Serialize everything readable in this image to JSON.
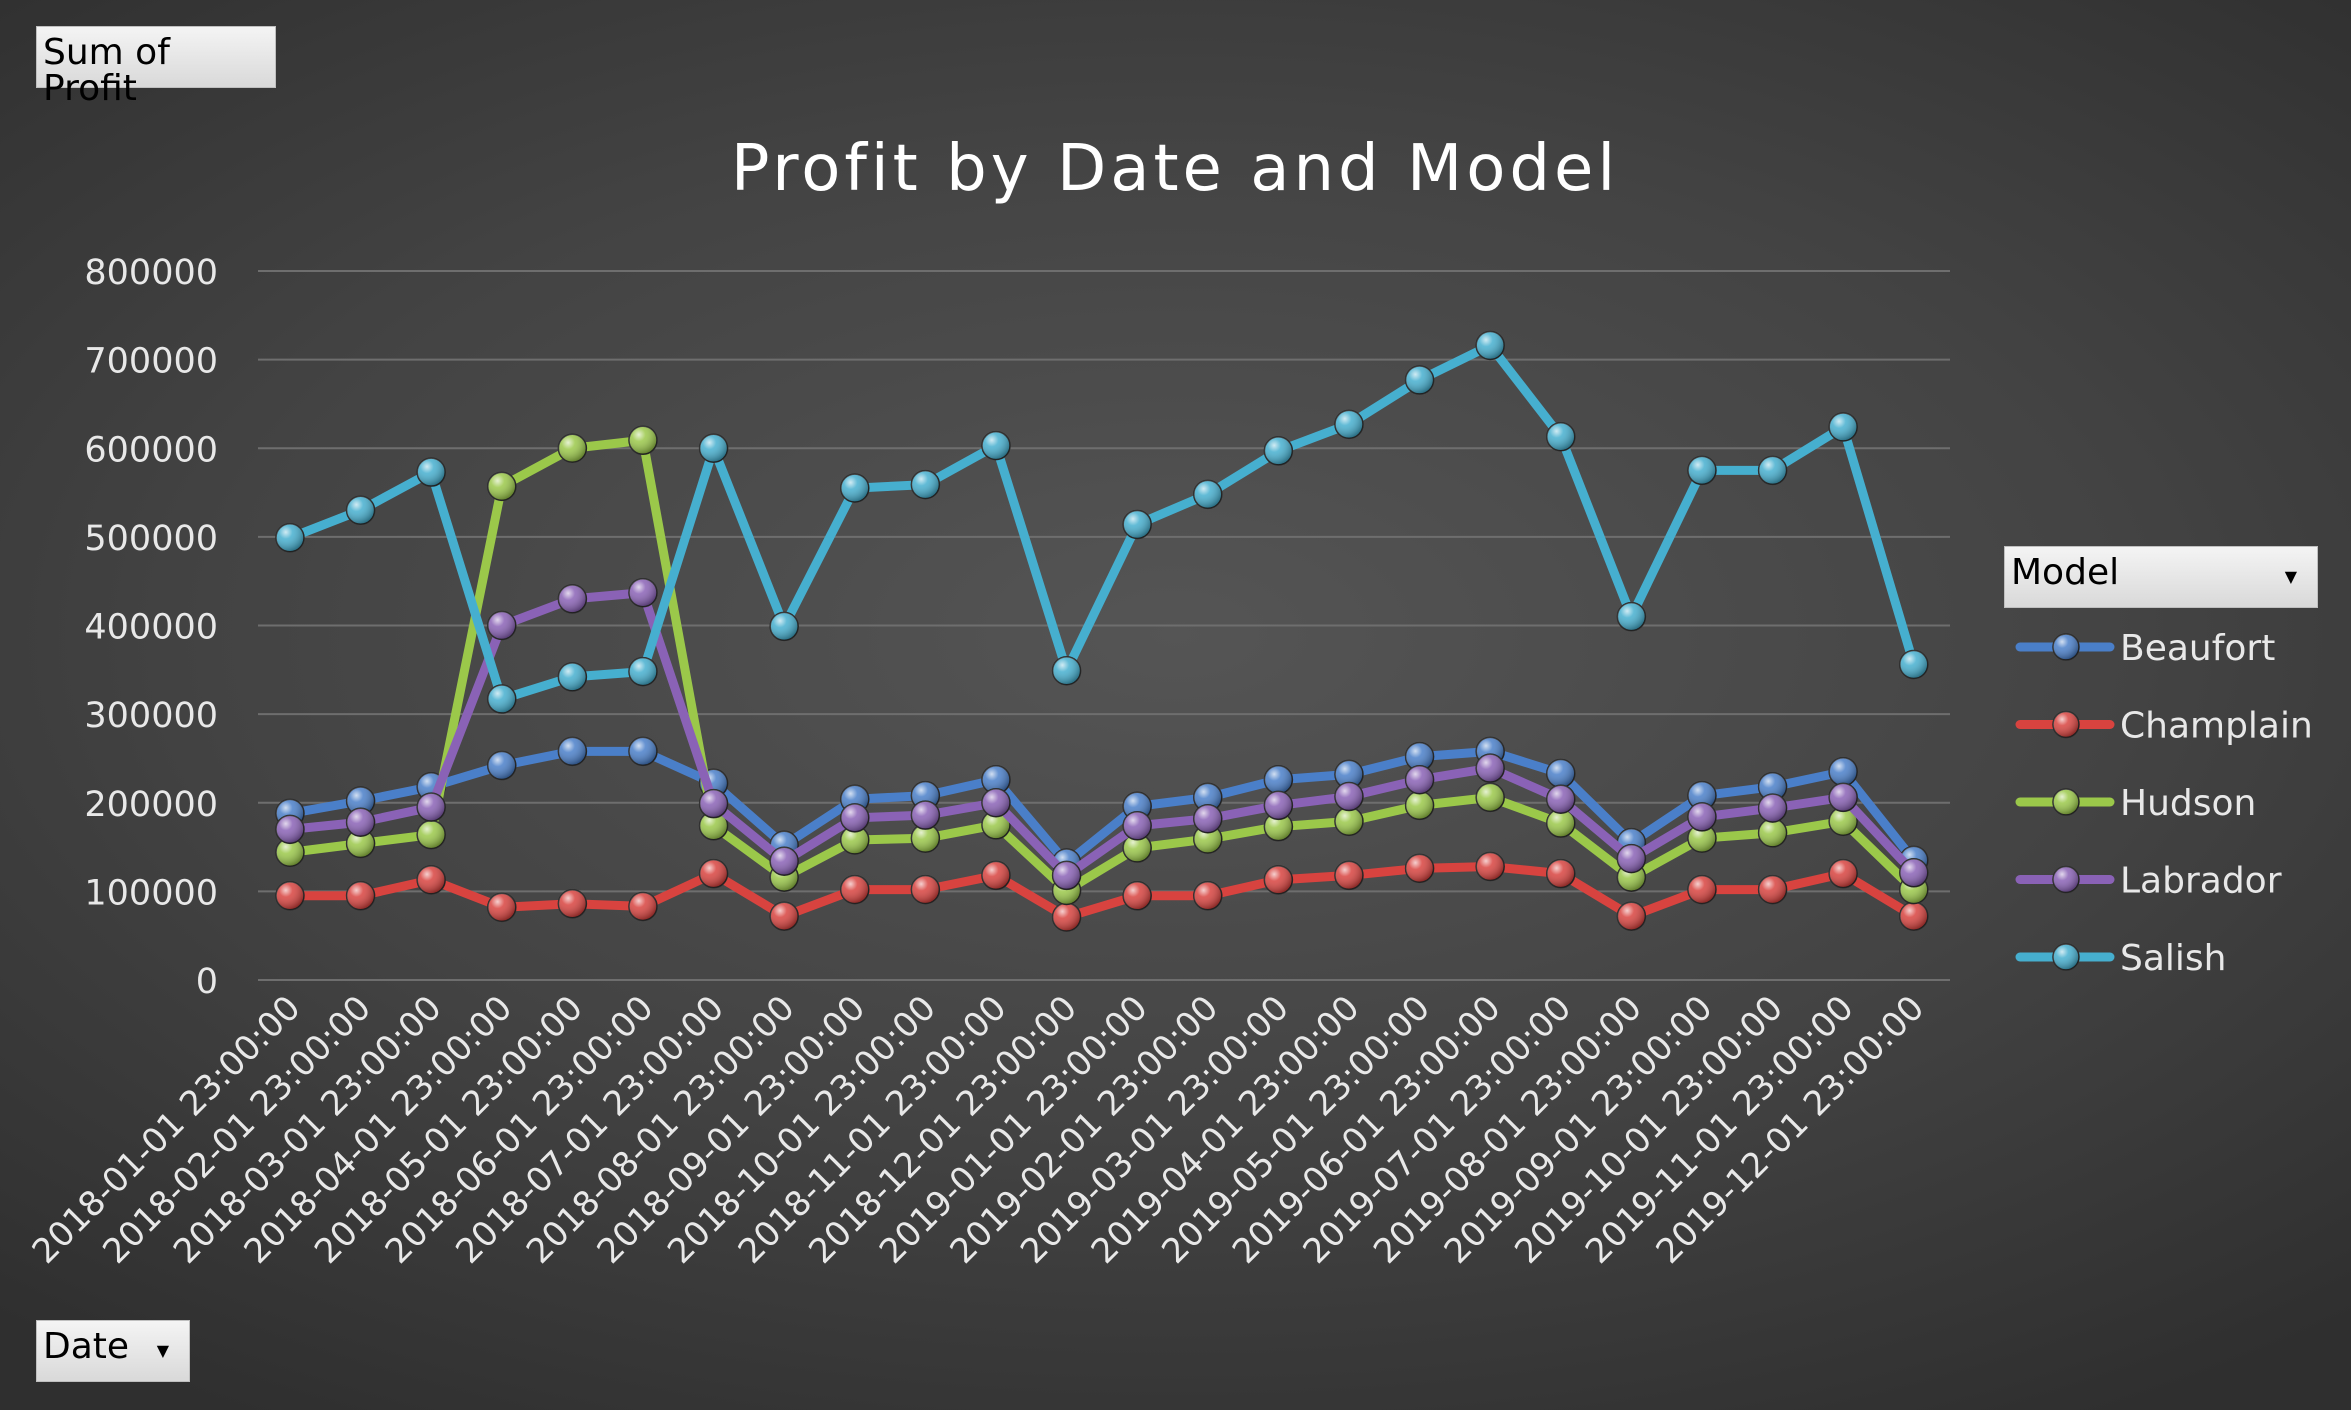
{
  "field_buttons": {
    "values_field": "Sum of Profit",
    "axis_field": "Date",
    "legend_field": "Model"
  },
  "chart_data": {
    "type": "line",
    "title": "Profit by Date and Model",
    "xlabel": "",
    "ylabel": "",
    "ylim": [
      0,
      800000
    ],
    "yticks": [
      0,
      100000,
      200000,
      300000,
      400000,
      500000,
      600000,
      700000,
      800000
    ],
    "grid": true,
    "legend_position": "right",
    "categories": [
      "2018-01-01 23:00:00",
      "2018-02-01 23:00:00",
      "2018-03-01 23:00:00",
      "2018-04-01 23:00:00",
      "2018-05-01 23:00:00",
      "2018-06-01 23:00:00",
      "2018-07-01 23:00:00",
      "2018-08-01 23:00:00",
      "2018-09-01 23:00:00",
      "2018-10-01 23:00:00",
      "2018-11-01 23:00:00",
      "2018-12-01 23:00:00",
      "2019-01-01 23:00:00",
      "2019-02-01 23:00:00",
      "2019-03-01 23:00:00",
      "2019-04-01 23:00:00",
      "2019-05-01 23:00:00",
      "2019-06-01 23:00:00",
      "2019-07-01 23:00:00",
      "2019-08-01 23:00:00",
      "2019-09-01 23:00:00",
      "2019-10-01 23:00:00",
      "2019-11-01 23:00:00",
      "2019-12-01 23:00:00"
    ],
    "series": [
      {
        "name": "Beaufort",
        "color": "#4a7fc9",
        "values": [
          188000,
          202000,
          218000,
          242000,
          258000,
          258000,
          222000,
          152000,
          204000,
          208000,
          226000,
          132000,
          196000,
          206000,
          226000,
          232000,
          252000,
          258000,
          233000,
          155000,
          208000,
          218000,
          235000,
          135000
        ]
      },
      {
        "name": "Champlain",
        "color": "#d8433f",
        "values": [
          95000,
          95000,
          113000,
          82000,
          86000,
          83000,
          120000,
          72000,
          102000,
          102000,
          118000,
          71000,
          95000,
          95000,
          113000,
          118000,
          126000,
          128000,
          120000,
          72000,
          102000,
          102000,
          120000,
          72000
        ]
      },
      {
        "name": "Hudson",
        "color": "#9bc84a",
        "values": [
          144000,
          154000,
          164000,
          557000,
          600000,
          609000,
          174000,
          116000,
          158000,
          160000,
          175000,
          101000,
          149000,
          159000,
          173000,
          179000,
          197000,
          206000,
          177000,
          116000,
          160000,
          166000,
          179000,
          102000
        ]
      },
      {
        "name": "Labrador",
        "color": "#8a62b6",
        "values": [
          170000,
          178000,
          195000,
          400000,
          430000,
          437000,
          199000,
          134000,
          183000,
          186000,
          200000,
          118000,
          174000,
          182000,
          197000,
          207000,
          226000,
          239000,
          204000,
          137000,
          184000,
          194000,
          206000,
          121000
        ]
      },
      {
        "name": "Salish",
        "color": "#46afcf",
        "values": [
          499000,
          530000,
          573000,
          317000,
          342000,
          348000,
          600000,
          399000,
          555000,
          559000,
          603000,
          349000,
          514000,
          548000,
          597000,
          627000,
          677000,
          716000,
          613000,
          410000,
          575000,
          575000,
          624000,
          356000
        ]
      }
    ]
  }
}
